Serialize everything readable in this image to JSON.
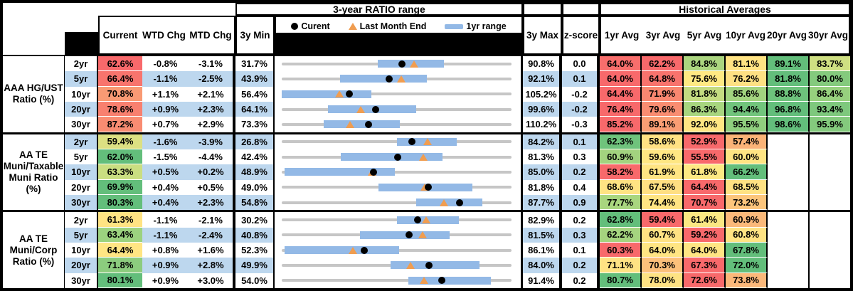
{
  "header": {
    "title_range": "3-year RATIO range",
    "title_hist": "Historical Averages",
    "col_current": "Current",
    "col_wtd": "WTD Chg",
    "col_mtd": "MTD Chg",
    "col_3ymin": "3y Min",
    "col_3ymax": "3y Max",
    "col_z": "z-score",
    "avg_cols": [
      "1yr Avg",
      "3yr Avg",
      "5yr Avg",
      "10yr Avg",
      "20yr Avg",
      "30yr Avg"
    ],
    "legend": {
      "current": "Curent",
      "last_month_end": "Last Month End",
      "range": "1yr range"
    }
  },
  "colors": {
    "stripe_blue": "#bdd7ee",
    "track_gray": "#c6c6c6",
    "range_bar_blue": "#93b9e6",
    "triangle_orange": "#f09d50",
    "dot_black": "#000000",
    "scale_red": "#f8696b",
    "scale_yellow": "#ffe383",
    "scale_green": "#63be7b"
  },
  "chart_data": {
    "type": "table",
    "embedded_chart": "per-row dot/range plot scaled from 3y Min to 3y Max; black dot = current, orange triangle = last month end, blue bar = 1yr range",
    "groups": [
      {
        "label_lines": [
          "AAA HG/UST",
          "Ratio (%)"
        ],
        "rows": [
          {
            "tenor": "2yr",
            "current": "62.6%",
            "current_bg": "#f8696b",
            "wtd": "-0.8%",
            "mtd": "-3.1%",
            "min3y": "31.7%",
            "max3y": "90.8%",
            "z": "0.0",
            "range": {
              "min": 31.7,
              "max": 90.8,
              "bar_lo": 56.4,
              "bar_hi": 73.4,
              "current": 62.6,
              "last_month_end": 65.7
            },
            "avgs": [
              {
                "v": "64.0%",
                "bg": "#f86e6c"
              },
              {
                "v": "62.2%",
                "bg": "#f8696b"
              },
              {
                "v": "84.8%",
                "bg": "#abd57f"
              },
              {
                "v": "81.1%",
                "bg": "#ffe383"
              },
              {
                "v": "89.1%",
                "bg": "#63be7b"
              },
              {
                "v": "83.7%",
                "bg": "#cfdf82"
              }
            ]
          },
          {
            "tenor": "5yr",
            "current": "66.4%",
            "current_bg": "#f8746d",
            "wtd": "-1.1%",
            "mtd": "-2.5%",
            "min3y": "43.9%",
            "max3y": "92.1%",
            "z": "0.1",
            "range": {
              "min": 43.9,
              "max": 92.1,
              "bar_lo": 56.2,
              "bar_hi": 74.4,
              "current": 66.4,
              "last_month_end": 68.9
            },
            "avgs": [
              {
                "v": "64.0%",
                "bg": "#f8696b"
              },
              {
                "v": "64.8%",
                "bg": "#f8736d"
              },
              {
                "v": "75.6%",
                "bg": "#ffe983"
              },
              {
                "v": "76.2%",
                "bg": "#fee083"
              },
              {
                "v": "81.8%",
                "bg": "#63be7b"
              },
              {
                "v": "80.0%",
                "bg": "#84ca7d"
              }
            ]
          },
          {
            "tenor": "10yr",
            "current": "70.8%",
            "current_bg": "#f99a74",
            "wtd": "+1.1%",
            "mtd": "+2.1%",
            "min3y": "56.4%",
            "max3y": "105.2%",
            "z": "-0.2",
            "range": {
              "min": 56.4,
              "max": 105.2,
              "bar_lo": 56.4,
              "bar_hi": 75.5,
              "current": 70.8,
              "last_month_end": 68.7
            },
            "avgs": [
              {
                "v": "64.4%",
                "bg": "#f8696b"
              },
              {
                "v": "71.9%",
                "bg": "#f98770"
              },
              {
                "v": "81.8%",
                "bg": "#c4db81"
              },
              {
                "v": "85.6%",
                "bg": "#a2d37f"
              },
              {
                "v": "88.8%",
                "bg": "#6dc27c"
              },
              {
                "v": "86.4%",
                "bg": "#97d07e"
              }
            ]
          },
          {
            "tenor": "20yr",
            "current": "78.6%",
            "current_bg": "#f8806f",
            "wtd": "+0.9%",
            "mtd": "+2.3%",
            "min3y": "64.1%",
            "max3y": "99.6%",
            "z": "-0.2",
            "range": {
              "min": 64.1,
              "max": 99.6,
              "bar_lo": 71.2,
              "bar_hi": 84.9,
              "current": 78.6,
              "last_month_end": 76.3
            },
            "avgs": [
              {
                "v": "76.4%",
                "bg": "#f8696b"
              },
              {
                "v": "79.6%",
                "bg": "#f98d71"
              },
              {
                "v": "86.3%",
                "bg": "#a7d57f"
              },
              {
                "v": "94.4%",
                "bg": "#71c47c"
              },
              {
                "v": "96.8%",
                "bg": "#63be7b"
              },
              {
                "v": "93.4%",
                "bg": "#7ec87d"
              }
            ]
          },
          {
            "tenor": "30yr",
            "current": "87.2%",
            "current_bg": "#f98c72",
            "wtd": "+0.7%",
            "mtd": "+2.9%",
            "min3y": "73.3%",
            "max3y": "110.2%",
            "z": "-0.3",
            "range": {
              "min": 73.3,
              "max": 110.2,
              "bar_lo": 80.0,
              "bar_hi": 92.3,
              "current": 87.2,
              "last_month_end": 84.3
            },
            "avgs": [
              {
                "v": "85.2%",
                "bg": "#f8696b"
              },
              {
                "v": "89.1%",
                "bg": "#fa9e74"
              },
              {
                "v": "92.0%",
                "bg": "#ffe683"
              },
              {
                "v": "95.5%",
                "bg": "#90cf7e"
              },
              {
                "v": "98.6%",
                "bg": "#63be7b"
              },
              {
                "v": "95.9%",
                "bg": "#84ca7d"
              }
            ]
          }
        ]
      },
      {
        "label_lines": [
          "AA TE",
          "Muni/Taxable",
          "Muni Ratio",
          "(%)"
        ],
        "rows": [
          {
            "tenor": "2yr",
            "current": "59.4%",
            "current_bg": "#dce082",
            "wtd": "-1.6%",
            "mtd": "-3.9%",
            "min3y": "26.8%",
            "max3y": "84.2%",
            "z": "0.1",
            "range": {
              "min": 26.8,
              "max": 84.2,
              "bar_lo": 55.5,
              "bar_hi": 70.6,
              "current": 59.4,
              "last_month_end": 63.3
            },
            "avgs": [
              {
                "v": "62.3%",
                "bg": "#6fc37c"
              },
              {
                "v": "58.6%",
                "bg": "#ffe183"
              },
              {
                "v": "52.9%",
                "bg": "#f8696b"
              },
              {
                "v": "57.4%",
                "bg": "#fbb377"
              },
              {
                "v": "",
                "bg": ""
              },
              {
                "v": "",
                "bg": ""
              }
            ]
          },
          {
            "tenor": "5yr",
            "current": "62.0%",
            "current_bg": "#63be7b",
            "wtd": "-1.5%",
            "mtd": "-4.4%",
            "min3y": "42.4%",
            "max3y": "81.3%",
            "z": "0.3",
            "range": {
              "min": 42.4,
              "max": 81.3,
              "bar_lo": 52.4,
              "bar_hi": 69.6,
              "current": 62.0,
              "last_month_end": 66.4
            },
            "avgs": [
              {
                "v": "60.9%",
                "bg": "#a3d37f"
              },
              {
                "v": "59.6%",
                "bg": "#ffe783"
              },
              {
                "v": "55.5%",
                "bg": "#f8696b"
              },
              {
                "v": "60.0%",
                "bg": "#ffe483"
              },
              {
                "v": "",
                "bg": ""
              },
              {
                "v": "",
                "bg": ""
              }
            ]
          },
          {
            "tenor": "10yr",
            "current": "63.3%",
            "current_bg": "#cade81",
            "wtd": "+0.5%",
            "mtd": "+0.2%",
            "min3y": "48.9%",
            "max3y": "85.0%",
            "z": "0.2",
            "range": {
              "min": 48.9,
              "max": 85.0,
              "bar_lo": 49.3,
              "bar_hi": 66.7,
              "current": 63.3,
              "last_month_end": 63.1
            },
            "avgs": [
              {
                "v": "58.2%",
                "bg": "#f8696b"
              },
              {
                "v": "61.9%",
                "bg": "#ffe583"
              },
              {
                "v": "61.8%",
                "bg": "#fde983"
              },
              {
                "v": "66.2%",
                "bg": "#63be7b"
              },
              {
                "v": "",
                "bg": ""
              },
              {
                "v": "",
                "bg": ""
              }
            ]
          },
          {
            "tenor": "20yr",
            "current": "69.9%",
            "current_bg": "#63be7b",
            "wtd": "+0.4%",
            "mtd": "+0.5%",
            "min3y": "49.0%",
            "max3y": "81.8%",
            "z": "0.4",
            "range": {
              "min": 49.0,
              "max": 81.8,
              "bar_lo": 62.8,
              "bar_hi": 76.2,
              "current": 69.9,
              "last_month_end": 69.4
            },
            "avgs": [
              {
                "v": "68.6%",
                "bg": "#ffe383"
              },
              {
                "v": "67.5%",
                "bg": "#ffdf82"
              },
              {
                "v": "64.4%",
                "bg": "#f8696b"
              },
              {
                "v": "68.5%",
                "bg": "#ffe283"
              },
              {
                "v": "",
                "bg": ""
              },
              {
                "v": "",
                "bg": ""
              }
            ]
          },
          {
            "tenor": "30yr",
            "current": "80.3%",
            "current_bg": "#63be7b",
            "wtd": "+0.4%",
            "mtd": "+2.3%",
            "min3y": "54.8%",
            "max3y": "87.7%",
            "z": "0.9",
            "range": {
              "min": 54.8,
              "max": 87.7,
              "bar_lo": 74.1,
              "bar_hi": 83.5,
              "current": 80.3,
              "last_month_end": 78.0
            },
            "avgs": [
              {
                "v": "77.7%",
                "bg": "#a9d67f"
              },
              {
                "v": "74.4%",
                "bg": "#ffe483"
              },
              {
                "v": "70.7%",
                "bg": "#f8696b"
              },
              {
                "v": "73.2%",
                "bg": "#fcc57c"
              },
              {
                "v": "",
                "bg": ""
              },
              {
                "v": "",
                "bg": ""
              }
            ]
          }
        ]
      },
      {
        "label_lines": [
          "AA TE",
          "Muni/Corp",
          "Ratio (%)"
        ],
        "rows": [
          {
            "tenor": "2yr",
            "current": "61.3%",
            "current_bg": "#ffe383",
            "wtd": "-1.1%",
            "mtd": "-2.1%",
            "min3y": "30.2%",
            "max3y": "82.9%",
            "z": "0.2",
            "range": {
              "min": 30.2,
              "max": 82.9,
              "bar_lo": 56.6,
              "bar_hi": 70.8,
              "current": 61.3,
              "last_month_end": 63.4
            },
            "avgs": [
              {
                "v": "62.8%",
                "bg": "#63be7b"
              },
              {
                "v": "59.4%",
                "bg": "#f8696b"
              },
              {
                "v": "61.4%",
                "bg": "#fae883"
              },
              {
                "v": "60.9%",
                "bg": "#fbb97a"
              },
              {
                "v": "",
                "bg": ""
              },
              {
                "v": "",
                "bg": ""
              }
            ]
          },
          {
            "tenor": "5yr",
            "current": "63.4%",
            "current_bg": "#9cd27f",
            "wtd": "-1.1%",
            "mtd": "-2.4%",
            "min3y": "40.8%",
            "max3y": "81.5%",
            "z": "0.3",
            "range": {
              "min": 40.8,
              "max": 81.5,
              "bar_lo": 54.6,
              "bar_hi": 70.5,
              "current": 63.4,
              "last_month_end": 65.8
            },
            "avgs": [
              {
                "v": "62.2%",
                "bg": "#a5d47f"
              },
              {
                "v": "60.7%",
                "bg": "#ffe283"
              },
              {
                "v": "59.2%",
                "bg": "#f8696b"
              },
              {
                "v": "60.8%",
                "bg": "#ffe383"
              },
              {
                "v": "",
                "bg": ""
              },
              {
                "v": "",
                "bg": ""
              }
            ]
          },
          {
            "tenor": "10yr",
            "current": "64.4%",
            "current_bg": "#ffe583",
            "wtd": "+0.8%",
            "mtd": "+1.6%",
            "min3y": "52.3%",
            "max3y": "86.1%",
            "z": "0.1",
            "range": {
              "min": 52.3,
              "max": 86.1,
              "bar_lo": 52.7,
              "bar_hi": 69.6,
              "current": 64.4,
              "last_month_end": 62.8
            },
            "avgs": [
              {
                "v": "60.3%",
                "bg": "#f8696b"
              },
              {
                "v": "64.0%",
                "bg": "#ffe583"
              },
              {
                "v": "64.0%",
                "bg": "#ffe583"
              },
              {
                "v": "67.8%",
                "bg": "#63be7b"
              },
              {
                "v": "",
                "bg": ""
              },
              {
                "v": "",
                "bg": ""
              }
            ]
          },
          {
            "tenor": "20yr",
            "current": "71.8%",
            "current_bg": "#8ccc7e",
            "wtd": "+0.9%",
            "mtd": "+2.8%",
            "min3y": "49.9%",
            "max3y": "84.0%",
            "z": "0.2",
            "range": {
              "min": 49.9,
              "max": 84.0,
              "bar_lo": 66.1,
              "bar_hi": 79.2,
              "current": 71.8,
              "last_month_end": 69.0
            },
            "avgs": [
              {
                "v": "71.1%",
                "bg": "#ffe383"
              },
              {
                "v": "70.3%",
                "bg": "#fcc07b"
              },
              {
                "v": "67.3%",
                "bg": "#f8696b"
              },
              {
                "v": "72.0%",
                "bg": "#63be7b"
              },
              {
                "v": "",
                "bg": ""
              },
              {
                "v": "",
                "bg": ""
              }
            ]
          },
          {
            "tenor": "30yr",
            "current": "80.1%",
            "current_bg": "#63be7b",
            "wtd": "+0.9%",
            "mtd": "+3.0%",
            "min3y": "54.0%",
            "max3y": "91.4%",
            "z": "0.2",
            "range": {
              "min": 54.0,
              "max": 91.4,
              "bar_lo": 74.6,
              "bar_hi": 88.0,
              "current": 80.1,
              "last_month_end": 77.1
            },
            "avgs": [
              {
                "v": "80.7%",
                "bg": "#63be7b"
              },
              {
                "v": "78.0%",
                "bg": "#fee283"
              },
              {
                "v": "72.6%",
                "bg": "#f8696b"
              },
              {
                "v": "73.8%",
                "bg": "#fbb87a"
              },
              {
                "v": "",
                "bg": ""
              },
              {
                "v": "",
                "bg": ""
              }
            ]
          }
        ]
      }
    ]
  }
}
